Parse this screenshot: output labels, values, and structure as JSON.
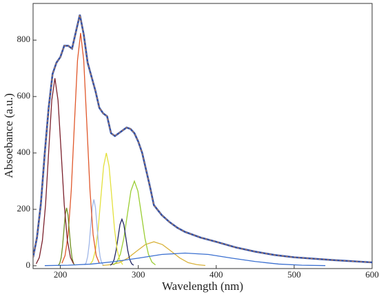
{
  "chart_data": {
    "type": "line",
    "xlabel": "Wavelength (nm)",
    "ylabel": "Absoebance (a.u.)",
    "xlim": [
      165,
      600
    ],
    "ylim": [
      -10,
      930
    ],
    "xticks": [
      200,
      300,
      400,
      500,
      600
    ],
    "yticks": [
      0,
      200,
      400,
      600,
      800
    ],
    "x": [
      165,
      170,
      175,
      180,
      185,
      190,
      195,
      200,
      205,
      210,
      215,
      220,
      225,
      230,
      235,
      240,
      245,
      250,
      255,
      260,
      265,
      270,
      275,
      280,
      285,
      290,
      295,
      300,
      305,
      310,
      315,
      320,
      330,
      340,
      350,
      360,
      380,
      400,
      425,
      450,
      475,
      500,
      550,
      600
    ],
    "series": [
      {
        "color": "#2f4fa8",
        "values": [
          30,
          100,
          220,
          400,
          560,
          680,
          720,
          740,
          780,
          780,
          770,
          830,
          890,
          820,
          720,
          670,
          620,
          560,
          540,
          530,
          470,
          460,
          470,
          480,
          490,
          485,
          470,
          440,
          400,
          340,
          280,
          215,
          180,
          155,
          135,
          120,
          100,
          85,
          65,
          50,
          38,
          30,
          20,
          12
        ]
      },
      {
        "color": "#3a6fd0",
        "x": [
          180,
          210,
          240,
          270,
          300,
          330,
          360,
          390,
          420,
          450,
          480,
          510,
          540
        ],
        "values": [
          0.5,
          2,
          6,
          15,
          27,
          40,
          45,
          40,
          27,
          15,
          6,
          2,
          0.5
        ]
      },
      {
        "color": "#7a1f2b",
        "x": [
          169,
          173,
          177,
          181,
          185,
          189,
          193,
          197,
          201,
          205,
          209,
          213,
          217
        ],
        "values": [
          7,
          29,
          90,
          216,
          404,
          587,
          665,
          587,
          404,
          216,
          90,
          29,
          7
        ]
      },
      {
        "color": "#6e8f1e",
        "x": [
          197.5,
          199.25,
          201,
          202.75,
          204.5,
          206.25,
          208,
          209.75,
          211.5,
          213.25,
          215,
          216.75,
          218.5
        ],
        "values": [
          2,
          9,
          28,
          67,
          124,
          181,
          205,
          181,
          124,
          67,
          28,
          9,
          2
        ]
      },
      {
        "color": "#e0572a",
        "x": [
          202,
          206,
          210,
          214,
          218,
          222,
          226,
          230,
          234,
          238,
          242,
          246,
          250
        ],
        "values": [
          9,
          36,
          111,
          268,
          501,
          728,
          825,
          728,
          501,
          268,
          111,
          36,
          9
        ]
      },
      {
        "color": "#9fb6e8",
        "x": [
          231,
          233,
          235,
          237,
          239,
          241,
          243,
          245,
          247,
          249,
          251,
          253,
          255
        ],
        "values": [
          3,
          10,
          32,
          76,
          143,
          207,
          235,
          207,
          143,
          76,
          32,
          10,
          3
        ]
      },
      {
        "color": "#e3e03a",
        "x": [
          238,
          241.5,
          245,
          248.5,
          252,
          255.5,
          259,
          262.5,
          266,
          269.5,
          273,
          276.5,
          280
        ],
        "values": [
          4,
          18,
          54,
          130,
          243,
          353,
          400,
          353,
          243,
          130,
          54,
          18,
          4
        ]
      },
      {
        "color": "#1f2360",
        "x": [
          264,
          266.5,
          269,
          271.5,
          274,
          276.5,
          279,
          281.5,
          284,
          286.5,
          289,
          291.5,
          294
        ],
        "values": [
          2,
          7,
          22,
          54,
          100,
          146,
          165,
          146,
          100,
          54,
          22,
          7,
          2
        ]
      },
      {
        "color": "#9acd32",
        "x": [
          268,
          272.5,
          277,
          281.5,
          286,
          290.5,
          295,
          299.5,
          304,
          308.5,
          313,
          317.5,
          322
        ],
        "values": [
          3,
          13,
          41,
          98,
          182,
          265,
          300,
          265,
          182,
          98,
          41,
          13,
          3
        ]
      },
      {
        "color": "#d9b23a",
        "x": [
          254,
          265,
          276,
          287,
          298,
          309,
          320,
          331,
          342,
          353,
          364,
          375,
          386
        ],
        "values": [
          1,
          4,
          11,
          28,
          52,
          75,
          85,
          75,
          52,
          28,
          11,
          4,
          1
        ]
      }
    ]
  }
}
